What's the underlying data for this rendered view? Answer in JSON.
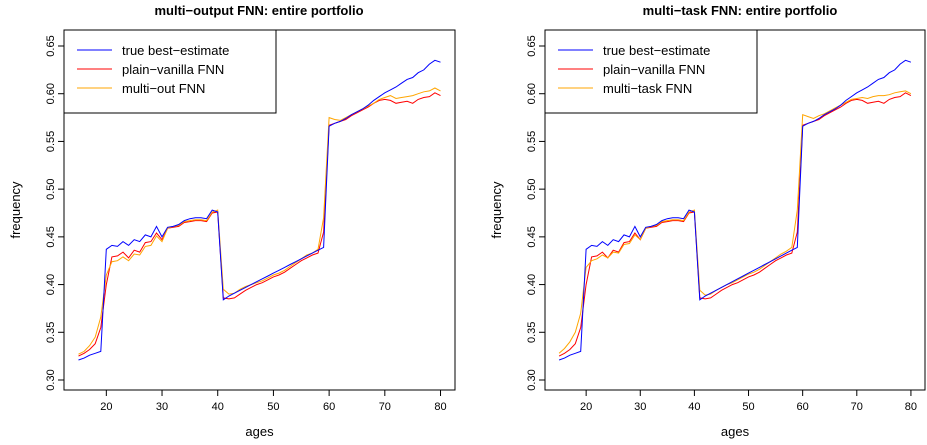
{
  "colors": {
    "true": "#0000ff",
    "vanilla": "#ff0000",
    "multi": "#ffa500"
  },
  "x_ages": [
    15,
    16,
    17,
    18,
    19,
    20,
    21,
    22,
    23,
    24,
    25,
    26,
    27,
    28,
    29,
    30,
    31,
    32,
    33,
    34,
    35,
    36,
    37,
    38,
    39,
    40,
    41,
    42,
    43,
    44,
    45,
    46,
    47,
    48,
    49,
    50,
    51,
    52,
    53,
    54,
    55,
    56,
    57,
    58,
    59,
    60,
    61,
    62,
    63,
    64,
    65,
    66,
    67,
    68,
    69,
    70,
    71,
    72,
    73,
    74,
    75,
    76,
    77,
    78,
    79,
    80
  ],
  "chart_data": [
    {
      "type": "line",
      "title": "multi−output FNN: entire portfolio",
      "xlabel": "ages",
      "ylabel": "frequency",
      "xlim": [
        15,
        80
      ],
      "ylim": [
        0.3,
        0.65
      ],
      "x_ticks": [
        20,
        30,
        40,
        50,
        60,
        70,
        80
      ],
      "y_ticks": [
        "0.30",
        "0.35",
        "0.40",
        "0.45",
        "0.50",
        "0.55",
        "0.60",
        "0.65"
      ],
      "legend_position": "top-left",
      "series": [
        {
          "name": "true best−estimate",
          "color": "#0000ff",
          "values": [
            0.321,
            0.323,
            0.326,
            0.328,
            0.33,
            0.437,
            0.441,
            0.44,
            0.445,
            0.441,
            0.447,
            0.445,
            0.452,
            0.45,
            0.461,
            0.45,
            0.46,
            0.461,
            0.463,
            0.467,
            0.469,
            0.47,
            0.47,
            0.469,
            0.478,
            0.476,
            0.384,
            0.388,
            0.391,
            0.394,
            0.397,
            0.4,
            0.403,
            0.406,
            0.409,
            0.412,
            0.415,
            0.418,
            0.421,
            0.424,
            0.427,
            0.43,
            0.433,
            0.436,
            0.439,
            0.566,
            0.569,
            0.571,
            0.574,
            0.578,
            0.581,
            0.584,
            0.588,
            0.593,
            0.597,
            0.601,
            0.604,
            0.607,
            0.611,
            0.615,
            0.617,
            0.622,
            0.625,
            0.631,
            0.635,
            0.633
          ]
        },
        {
          "name": "plain−vanilla FNN",
          "color": "#ff0000",
          "values": [
            0.325,
            0.328,
            0.332,
            0.338,
            0.355,
            0.4,
            0.429,
            0.43,
            0.434,
            0.428,
            0.436,
            0.434,
            0.444,
            0.445,
            0.454,
            0.447,
            0.459,
            0.46,
            0.461,
            0.465,
            0.466,
            0.467,
            0.467,
            0.466,
            0.475,
            0.476,
            0.386,
            0.385,
            0.386,
            0.39,
            0.394,
            0.397,
            0.4,
            0.402,
            0.405,
            0.408,
            0.41,
            0.413,
            0.417,
            0.421,
            0.425,
            0.428,
            0.431,
            0.433,
            0.455,
            0.567,
            0.569,
            0.571,
            0.573,
            0.577,
            0.58,
            0.583,
            0.586,
            0.59,
            0.593,
            0.594,
            0.593,
            0.59,
            0.591,
            0.592,
            0.59,
            0.594,
            0.596,
            0.597,
            0.601,
            0.598
          ]
        },
        {
          "name": "multi−out FNN",
          "color": "#ffa500",
          "values": [
            0.327,
            0.33,
            0.336,
            0.345,
            0.366,
            0.41,
            0.424,
            0.425,
            0.429,
            0.425,
            0.432,
            0.431,
            0.44,
            0.441,
            0.451,
            0.445,
            0.459,
            0.461,
            0.462,
            0.466,
            0.467,
            0.468,
            0.468,
            0.467,
            0.476,
            0.478,
            0.395,
            0.39,
            0.391,
            0.395,
            0.398,
            0.4,
            0.402,
            0.404,
            0.407,
            0.41,
            0.412,
            0.415,
            0.419,
            0.423,
            0.427,
            0.431,
            0.433,
            0.437,
            0.47,
            0.575,
            0.573,
            0.572,
            0.575,
            0.578,
            0.581,
            0.584,
            0.587,
            0.59,
            0.594,
            0.596,
            0.598,
            0.595,
            0.596,
            0.597,
            0.598,
            0.6,
            0.602,
            0.603,
            0.606,
            0.603
          ]
        }
      ]
    },
    {
      "type": "line",
      "title": "multi−task FNN: entire portfolio",
      "xlabel": "ages",
      "ylabel": "frequency",
      "xlim": [
        15,
        80
      ],
      "ylim": [
        0.3,
        0.65
      ],
      "x_ticks": [
        20,
        30,
        40,
        50,
        60,
        70,
        80
      ],
      "y_ticks": [
        "0.30",
        "0.35",
        "0.40",
        "0.45",
        "0.50",
        "0.55",
        "0.60",
        "0.65"
      ],
      "legend_position": "top-left",
      "series": [
        {
          "name": "true best−estimate",
          "color": "#0000ff",
          "values": [
            0.321,
            0.323,
            0.326,
            0.328,
            0.33,
            0.437,
            0.441,
            0.44,
            0.445,
            0.441,
            0.447,
            0.445,
            0.452,
            0.45,
            0.461,
            0.45,
            0.46,
            0.461,
            0.463,
            0.467,
            0.469,
            0.47,
            0.47,
            0.469,
            0.478,
            0.476,
            0.384,
            0.388,
            0.391,
            0.394,
            0.397,
            0.4,
            0.403,
            0.406,
            0.409,
            0.412,
            0.415,
            0.418,
            0.421,
            0.424,
            0.427,
            0.43,
            0.433,
            0.436,
            0.439,
            0.566,
            0.569,
            0.571,
            0.574,
            0.578,
            0.581,
            0.584,
            0.588,
            0.593,
            0.597,
            0.601,
            0.604,
            0.607,
            0.611,
            0.615,
            0.617,
            0.622,
            0.625,
            0.631,
            0.635,
            0.633
          ]
        },
        {
          "name": "plain−vanilla FNN",
          "color": "#ff0000",
          "values": [
            0.325,
            0.328,
            0.332,
            0.338,
            0.355,
            0.4,
            0.429,
            0.43,
            0.434,
            0.428,
            0.436,
            0.434,
            0.444,
            0.445,
            0.454,
            0.447,
            0.459,
            0.46,
            0.461,
            0.465,
            0.466,
            0.467,
            0.467,
            0.466,
            0.475,
            0.476,
            0.386,
            0.385,
            0.386,
            0.39,
            0.394,
            0.397,
            0.4,
            0.402,
            0.405,
            0.408,
            0.41,
            0.413,
            0.417,
            0.421,
            0.425,
            0.428,
            0.431,
            0.433,
            0.455,
            0.567,
            0.569,
            0.571,
            0.573,
            0.577,
            0.58,
            0.583,
            0.586,
            0.59,
            0.593,
            0.594,
            0.593,
            0.59,
            0.591,
            0.592,
            0.59,
            0.594,
            0.596,
            0.597,
            0.601,
            0.598
          ]
        },
        {
          "name": "multi−task FNN",
          "color": "#ffa500",
          "values": [
            0.328,
            0.333,
            0.34,
            0.35,
            0.37,
            0.418,
            0.425,
            0.427,
            0.431,
            0.428,
            0.434,
            0.433,
            0.442,
            0.443,
            0.452,
            0.447,
            0.459,
            0.461,
            0.462,
            0.466,
            0.467,
            0.468,
            0.468,
            0.467,
            0.476,
            0.478,
            0.394,
            0.389,
            0.39,
            0.394,
            0.397,
            0.4,
            0.402,
            0.405,
            0.408,
            0.411,
            0.413,
            0.416,
            0.42,
            0.424,
            0.428,
            0.432,
            0.435,
            0.439,
            0.478,
            0.578,
            0.576,
            0.574,
            0.577,
            0.579,
            0.582,
            0.585,
            0.588,
            0.591,
            0.594,
            0.595,
            0.596,
            0.595,
            0.597,
            0.598,
            0.598,
            0.599,
            0.601,
            0.602,
            0.603,
            0.6
          ]
        }
      ]
    }
  ]
}
